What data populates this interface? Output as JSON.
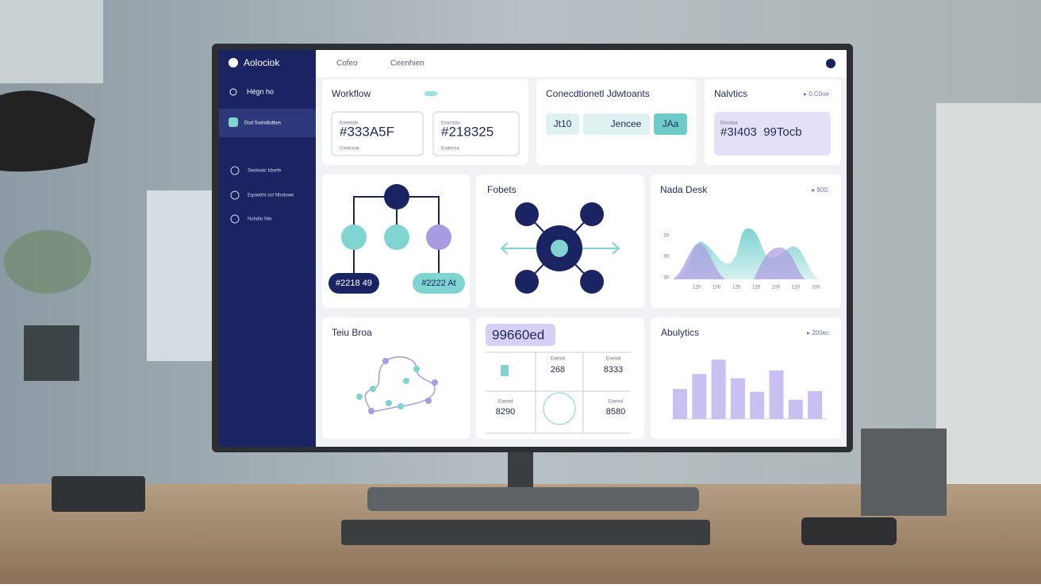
{
  "sidebar": {
    "app_name": "Aolociok",
    "search": "Hégn ho",
    "items": [
      "Dod Sodsdtutbus",
      "Swdwatc tdoefe",
      "Eqowdnt sot Nhotowe",
      "Nohdto Nte"
    ]
  },
  "topbar": {
    "tabs": [
      "Cofeo",
      "Ceenhien"
    ]
  },
  "workflow": {
    "title": "Workflow",
    "boxes": [
      {
        "caption": "Eoeistdo",
        "value": "#333A5F",
        "note": "Cxeicxsa"
      },
      {
        "caption": "Eoxcsdo",
        "value": "#218325",
        "note": "Exdxcsa"
      }
    ]
  },
  "connections": {
    "title": "Conecdtionetl Jdwtoants",
    "chips": [
      "Jt10",
      "Jencee",
      "JAa"
    ]
  },
  "metrics": {
    "title": "Nalvtics",
    "badge": "▸ 0.C0oe",
    "caption": "Eixcdua",
    "value": "#3I403  99Tocb"
  },
  "flow_diagram": {
    "nodes": [
      "#2218 49",
      "#2222 At"
    ]
  },
  "network": {
    "title": "Fobets"
  },
  "data_desk": {
    "title": "Nada Desk",
    "badge": "▸ 800:",
    "y_labels": [
      "30",
      "30",
      "30"
    ],
    "x_labels": [
      "120",
      "100",
      "120",
      "120",
      "100",
      "120",
      "100"
    ]
  },
  "path_graph": {
    "title": "Teiu Broa"
  },
  "summary": {
    "tag": "99660ed",
    "cells": [
      {
        "label": "Eoeixd",
        "value": "268"
      },
      {
        "label": "Eoeixd",
        "value": "8333"
      },
      {
        "label": "Eoeixd",
        "value": "8290"
      },
      {
        "label": "Eoeixd",
        "value": "8580"
      }
    ]
  },
  "analytics": {
    "title": "Abulytics",
    "badge": "▸ 200ec",
    "values": [
      42,
      63,
      83,
      57,
      38,
      68,
      27,
      39
    ],
    "ylim": [
      0,
      100
    ]
  }
}
